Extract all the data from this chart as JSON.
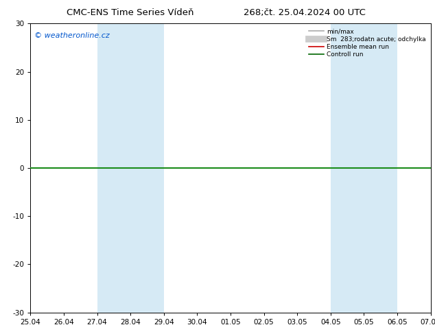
{
  "title_left": "CMC-ENS Time Series Vídeň",
  "title_right": "268;čt. 25.04.2024 00 UTC",
  "xlabel_ticks": [
    "25.04",
    "26.04",
    "27.04",
    "28.04",
    "29.04",
    "30.04",
    "01.05",
    "02.05",
    "03.05",
    "04.05",
    "05.05",
    "06.05",
    "07.05"
  ],
  "ytick_values": [
    -30,
    -20,
    -10,
    0,
    10,
    20,
    30
  ],
  "ylim": [
    -30,
    30
  ],
  "xlim": [
    0,
    12
  ],
  "shaded_columns": [
    2,
    3,
    9,
    10
  ],
  "shaded_color": "#d6eaf5",
  "watermark": "© weatheronline.cz",
  "watermark_color": "#0055cc",
  "legend_items": [
    {
      "label": "min/max",
      "color": "#aaaaaa",
      "lw": 1.2
    },
    {
      "label": "Sm  283;rodatn acute; odchylka",
      "color": "#cccccc",
      "lw": 7
    },
    {
      "label": "Ensemble mean run",
      "color": "#cc0000",
      "lw": 1.2
    },
    {
      "label": "Controll run",
      "color": "#006600",
      "lw": 1.2
    }
  ],
  "hline_y": 0,
  "hline_color": "#1a8c1a",
  "background_plot": "#ffffff",
  "spine_color": "#000000",
  "tick_fontsize": 7.5,
  "title_fontsize": 9.5
}
